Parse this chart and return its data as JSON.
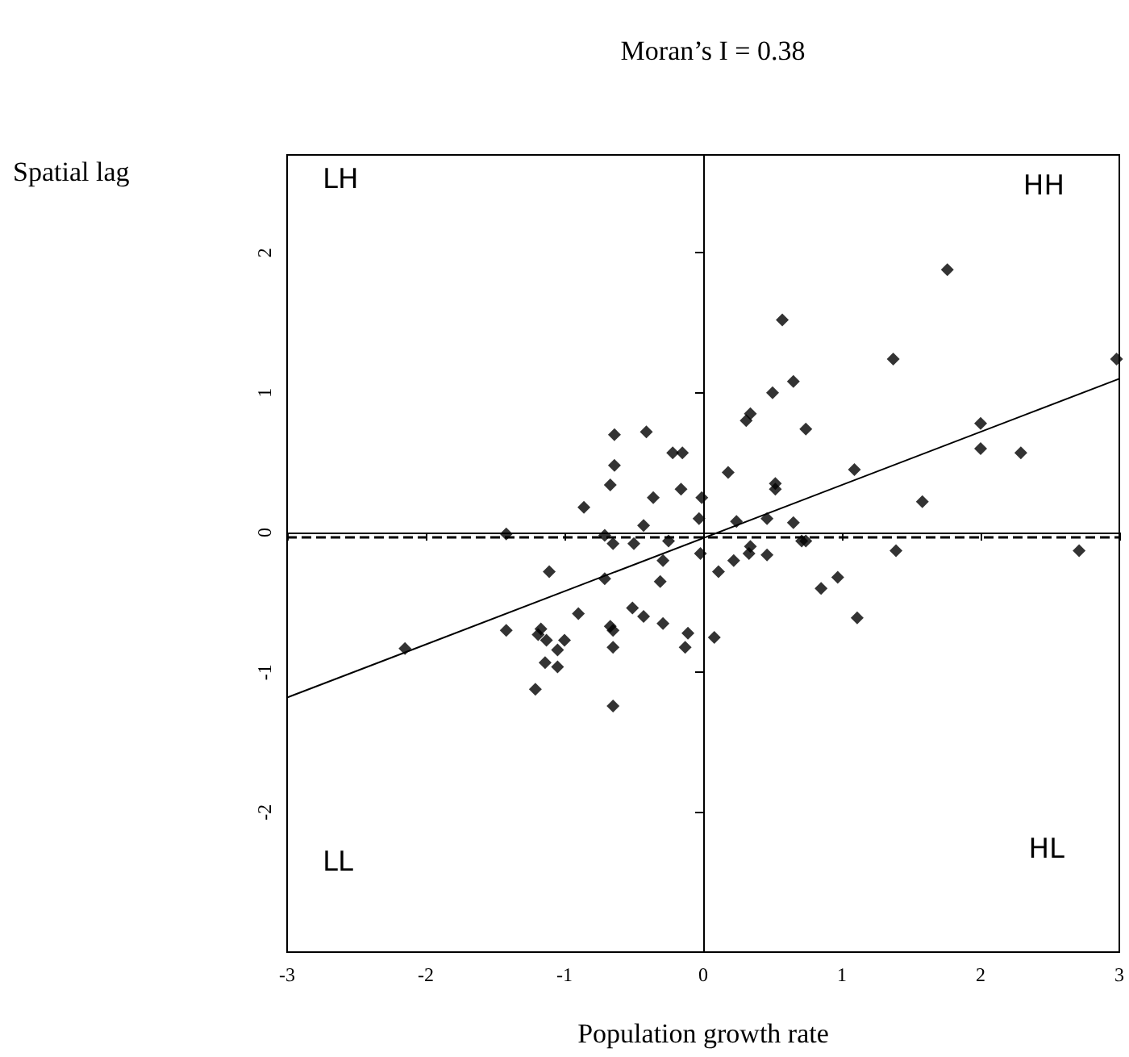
{
  "chart_data": {
    "type": "scatter",
    "title": "Moran’s I = 0.38",
    "xlabel": "Population growth rate",
    "ylabel": "Spatial lag",
    "xlim": [
      -3,
      3
    ],
    "xticks": [
      -3,
      -2,
      -1,
      0,
      1,
      2,
      3
    ],
    "ylim": [
      -3,
      2.7
    ],
    "yticks": [
      -2,
      -1,
      0,
      1,
      2
    ],
    "grid": false,
    "marker": "diamond",
    "series": [
      {
        "color": "#000000",
        "x": [
          -0.64,
          -0.41,
          -0.22,
          -0.15,
          -0.64,
          -0.67,
          -0.86,
          -0.16,
          -0.36,
          -0.01,
          -0.03,
          -0.43,
          -1.42,
          -0.71,
          -0.65,
          -0.5,
          -0.25,
          -0.29,
          -0.02,
          -1.11,
          -0.71,
          -0.31,
          -0.9,
          -0.51,
          -0.43,
          -0.29,
          -1.42,
          -1.17,
          -1.19,
          -1.13,
          -1.0,
          -1.05,
          -0.67,
          -0.65,
          -0.65,
          -0.11,
          -0.13,
          -1.14,
          -1.05,
          -1.21,
          -0.65,
          -2.15,
          1.76,
          0.57,
          1.37,
          2.98,
          0.65,
          0.5,
          0.31,
          0.34,
          0.74,
          2.0,
          2.0,
          2.29,
          0.18,
          1.09,
          0.52,
          0.52,
          1.58,
          0.24,
          0.46,
          0.65,
          0.71,
          0.74,
          0.34,
          0.33,
          0.46,
          0.22,
          1.39,
          2.71,
          0.11,
          0.97,
          0.85,
          1.11,
          0.08
        ],
        "values": [
          0.7,
          0.72,
          0.57,
          0.57,
          0.48,
          0.34,
          0.18,
          0.31,
          0.25,
          0.25,
          0.1,
          0.05,
          -0.01,
          -0.02,
          -0.08,
          -0.08,
          -0.06,
          -0.2,
          -0.15,
          -0.28,
          -0.33,
          -0.35,
          -0.58,
          -0.54,
          -0.6,
          -0.65,
          -0.7,
          -0.69,
          -0.73,
          -0.77,
          -0.77,
          -0.84,
          -0.67,
          -0.7,
          -0.82,
          -0.72,
          -0.82,
          -0.93,
          -0.96,
          -1.12,
          -1.24,
          -0.83,
          1.88,
          1.52,
          1.24,
          1.24,
          1.08,
          1.0,
          0.8,
          0.85,
          0.74,
          0.78,
          0.6,
          0.57,
          0.43,
          0.45,
          0.35,
          0.31,
          0.22,
          0.08,
          0.1,
          0.07,
          -0.06,
          -0.06,
          -0.1,
          -0.15,
          -0.16,
          -0.2,
          -0.13,
          -0.13,
          -0.28,
          -0.32,
          -0.4,
          -0.61,
          -0.75
        ]
      },
      {
        "type": "line",
        "color": "#000000",
        "marker": "none",
        "line_style": "solid",
        "x": [
          -3,
          3
        ],
        "values": [
          -1.18,
          1.1
        ]
      }
    ],
    "ref_lines": [
      {
        "axis": "x",
        "value": 0,
        "color": "#000000",
        "line_style": "solid"
      },
      {
        "axis": "y",
        "value": 0,
        "color": "#000000",
        "line_style": "solid"
      },
      {
        "axis": "y",
        "value": -0.03,
        "color": "#000000",
        "line_style": "dashed"
      }
    ],
    "annotations": [
      "LH",
      "HH",
      "LL",
      "HL"
    ]
  }
}
